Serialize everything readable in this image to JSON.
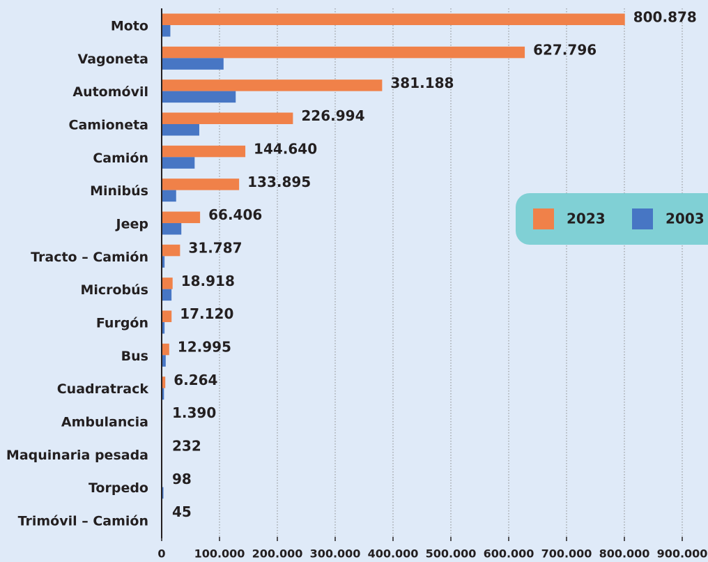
{
  "chart_data": {
    "type": "bar",
    "orientation": "horizontal",
    "categories": [
      "Moto",
      "Vagoneta",
      "Automóvil",
      "Camioneta",
      "Camión",
      "Minibús",
      "Jeep",
      "Tracto – Camión",
      "Microbús",
      "Furgón",
      "Bus",
      "Cuadratrack",
      "Ambulancia",
      "Maquinaria pesada",
      "Torpedo",
      "Trimóvil – Camión"
    ],
    "series": [
      {
        "name": "2023",
        "color": "#f08149",
        "values": [
          800878,
          627796,
          381188,
          226994,
          144640,
          133895,
          66406,
          31787,
          18918,
          17120,
          12995,
          6264,
          1390,
          232,
          98,
          45
        ],
        "value_labels": [
          "800.878",
          "627.796",
          "381.188",
          "226.994",
          "144.640",
          "133.895",
          "66.406",
          "31.787",
          "18.918",
          "17.120",
          "12.995",
          "6.264",
          "1.390",
          "232",
          "98",
          "45"
        ]
      },
      {
        "name": "2003",
        "color": "#4776c4",
        "values": [
          15000,
          107000,
          128000,
          65000,
          57000,
          25000,
          34000,
          5000,
          17000,
          5000,
          7000,
          4000,
          0,
          0,
          3000,
          0
        ]
      }
    ],
    "xlim": [
      0,
      900000
    ],
    "xticks": [
      0,
      {
        "value": 100000,
        "label": "100.000"
      },
      {
        "value": 200000,
        "label": "200.000"
      },
      {
        "value": 300000,
        "label": "300.000"
      },
      {
        "value": 400000,
        "label": "400.000"
      },
      {
        "value": 500000,
        "label": "500.000"
      },
      {
        "value": 600000,
        "label": "600.000"
      },
      {
        "value": 700000,
        "label": "700.000"
      },
      {
        "value": 800000,
        "label": "800.000"
      },
      {
        "value": 900000,
        "label": "900.000"
      }
    ],
    "grid": true,
    "legend": "right"
  }
}
